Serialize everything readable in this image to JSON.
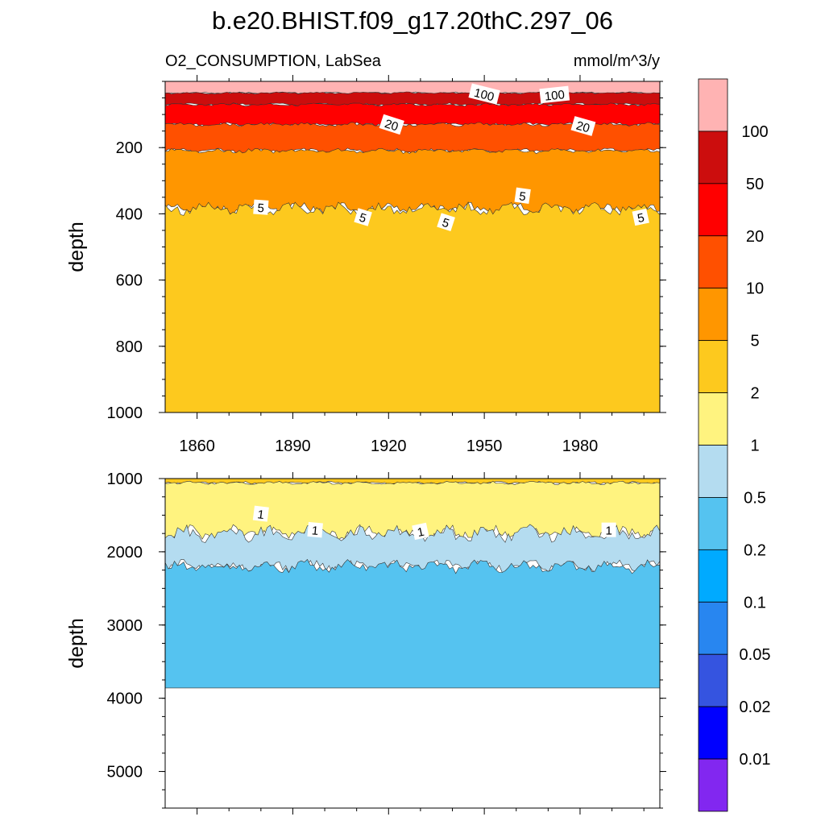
{
  "title": "b.e20.BHIST.f09_g17.20thC.297_06",
  "chart_data": [
    {
      "type": "heatmap",
      "subtype": "filled-contour",
      "panel": "upper",
      "left_label": "O2_CONSUMPTION, LabSea",
      "right_label": "mmol/m^3/y",
      "ylabel": "depth",
      "xlim": [
        1850,
        2005
      ],
      "ylim": [
        1000,
        0
      ],
      "yticks": [
        200,
        400,
        600,
        800,
        1000
      ],
      "xticks": [
        1860,
        1890,
        1920,
        1950,
        1980
      ],
      "bands": [
        {
          "range": ">100",
          "from_depth": 0,
          "to_depth": 35
        },
        {
          "range": "50-100",
          "from_depth": 35,
          "to_depth": 70
        },
        {
          "range": "20-50",
          "from_depth": 70,
          "to_depth": 130
        },
        {
          "range": "10-20",
          "from_depth": 130,
          "to_depth": 210
        },
        {
          "range": "5-10",
          "from_depth": 210,
          "to_depth": 385
        },
        {
          "range": "2-5",
          "from_depth": 385,
          "to_depth": 1000
        }
      ],
      "contour_labels": [
        {
          "text": "100",
          "year": 1950,
          "depth": 38
        },
        {
          "text": "100",
          "year": 1972,
          "depth": 40
        },
        {
          "text": "20",
          "year": 1921,
          "depth": 130
        },
        {
          "text": "20",
          "year": 1981,
          "depth": 135
        },
        {
          "text": "5",
          "year": 1880,
          "depth": 380
        },
        {
          "text": "5",
          "year": 1912,
          "depth": 410
        },
        {
          "text": "5",
          "year": 1938,
          "depth": 425
        },
        {
          "text": "5",
          "year": 1962,
          "depth": 345
        },
        {
          "text": "5",
          "year": 1999,
          "depth": 410
        }
      ]
    },
    {
      "type": "heatmap",
      "subtype": "filled-contour",
      "panel": "lower",
      "ylabel": "depth",
      "xlim": [
        1850,
        2005
      ],
      "ylim": [
        5500,
        1000
      ],
      "yticks": [
        1000,
        2000,
        3000,
        4000,
        5000
      ],
      "bands": [
        {
          "range": "2-5",
          "from_depth": 1000,
          "to_depth": 1060
        },
        {
          "range": "1-2",
          "from_depth": 1060,
          "to_depth": 1750
        },
        {
          "range": "0.5-1",
          "from_depth": 1750,
          "to_depth": 2200
        },
        {
          "range": "0.2-0.5",
          "from_depth": 2200,
          "to_depth": 3860
        }
      ],
      "contour_labels": [
        {
          "text": "1",
          "year": 1880,
          "depth": 1480
        },
        {
          "text": "1",
          "year": 1897,
          "depth": 1700
        },
        {
          "text": "1",
          "year": 1930,
          "depth": 1720
        },
        {
          "text": "1",
          "year": 1989,
          "depth": 1700
        }
      ]
    }
  ],
  "colorbar": {
    "labels": [
      "100",
      "50",
      "20",
      "10",
      "5",
      "2",
      "1",
      "0.5",
      "0.2",
      "0.1",
      "0.05",
      "0.02",
      "0.01"
    ],
    "colors": [
      "#ffb3b3",
      "#cc0d0d",
      "#ff0000",
      "#ff5000",
      "#ff9600",
      "#fdc91e",
      "#fff37f",
      "#b4dcf0",
      "#55c3f0",
      "#00aaff",
      "#2886f0",
      "#3554e0",
      "#0000ff",
      "#8227f0"
    ]
  }
}
